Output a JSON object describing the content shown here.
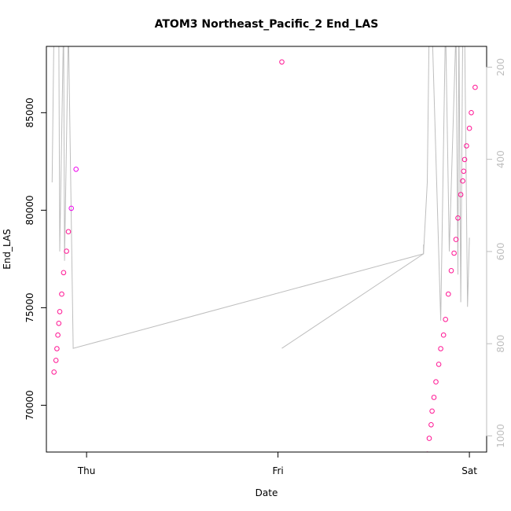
{
  "chart_data": {
    "type": "scatter",
    "title": "ATOM3 Northeast_Pacific_2 End_LAS",
    "xlabel": "Date",
    "ylabel": "End_LAS",
    "x_ticks": [
      {
        "label": "Thu",
        "value": 1.0
      },
      {
        "label": "Fri",
        "value": 2.0
      },
      {
        "label": "Sat",
        "value": 3.0
      }
    ],
    "xlim": [
      0.79,
      3.09
    ],
    "ylim": [
      67600,
      88400
    ],
    "y_ticks": [
      70000,
      75000,
      80000,
      85000
    ],
    "y2lim": [
      1035,
      155
    ],
    "y2_ticks": [
      200,
      400,
      600,
      800,
      1000
    ],
    "colors": {
      "points": "#ff1493",
      "points_alt": "#ee00ee",
      "line": "#bebebe",
      "frame": "#000000"
    },
    "series": [
      {
        "kind": "points",
        "points": [
          [
            0.83,
            71700
          ],
          [
            0.84,
            72300
          ],
          [
            0.845,
            72900
          ],
          [
            0.85,
            73600
          ],
          [
            0.855,
            74200
          ],
          [
            0.86,
            74800
          ],
          [
            0.87,
            75700
          ],
          [
            0.88,
            76800
          ],
          [
            0.895,
            77900
          ],
          [
            0.905,
            78900
          ],
          [
            0.92,
            80100
          ],
          [
            0.945,
            82100
          ],
          [
            2.02,
            87600
          ],
          [
            2.78,
            67500
          ],
          [
            2.79,
            68300
          ],
          [
            2.8,
            69000
          ],
          [
            2.805,
            69700
          ],
          [
            2.815,
            70400
          ],
          [
            2.825,
            71200
          ],
          [
            2.84,
            72100
          ],
          [
            2.85,
            72900
          ],
          [
            2.865,
            73600
          ],
          [
            2.875,
            74400
          ],
          [
            2.89,
            75700
          ],
          [
            2.905,
            76900
          ],
          [
            2.92,
            77800
          ],
          [
            2.93,
            78500
          ],
          [
            2.94,
            79600
          ],
          [
            2.955,
            80800
          ],
          [
            2.965,
            81500
          ],
          [
            2.97,
            82000
          ],
          [
            2.975,
            82600
          ],
          [
            2.985,
            83300
          ],
          [
            3.0,
            84200
          ],
          [
            3.01,
            85000
          ],
          [
            3.03,
            86300
          ]
        ]
      },
      {
        "kind": "line",
        "axis": "right",
        "points": [
          [
            0.82,
            450
          ],
          [
            0.83,
            110
          ],
          [
            0.855,
            120
          ],
          [
            0.86,
            600
          ],
          [
            0.88,
            100
          ],
          [
            0.885,
            620
          ],
          [
            0.905,
            110
          ],
          [
            0.93,
            810
          ],
          [
            2.76,
            605
          ],
          [
            2.78,
            450
          ],
          [
            2.79,
            100
          ],
          [
            2.805,
            110
          ],
          [
            2.85,
            750
          ],
          [
            2.875,
            100
          ],
          [
            2.895,
            600
          ],
          [
            2.93,
            120
          ],
          [
            2.94,
            650
          ],
          [
            2.945,
            100
          ],
          [
            2.955,
            710
          ],
          [
            2.965,
            120
          ],
          [
            2.97,
            100
          ],
          [
            2.975,
            120
          ],
          [
            2.99,
            720
          ],
          [
            3.0,
            570
          ]
        ]
      },
      {
        "kind": "line",
        "axis": "right",
        "points": [
          [
            2.02,
            810
          ],
          [
            2.76,
            605
          ],
          [
            2.76,
            585
          ]
        ]
      }
    ]
  }
}
